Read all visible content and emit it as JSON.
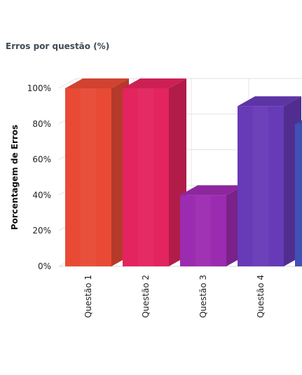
{
  "chart_data": {
    "type": "bar",
    "title": "Erros por questão (%)",
    "xlabel": "",
    "ylabel": "Porcentagem de Erros",
    "categories": [
      "Questão 1",
      "Questão 2",
      "Questão 3",
      "Questão 4",
      ""
    ],
    "values": [
      100,
      100,
      40,
      90,
      80
    ],
    "ylim": [
      0,
      100
    ],
    "yticks": [
      "0%",
      "20%",
      "40%",
      "60%",
      "80%",
      "100%"
    ],
    "grid": true,
    "legend": "none",
    "render_3d": true,
    "colors": [
      "#e84a35",
      "#e3245e",
      "#9b2bb0",
      "#673ab7",
      "#3f51b5"
    ]
  }
}
